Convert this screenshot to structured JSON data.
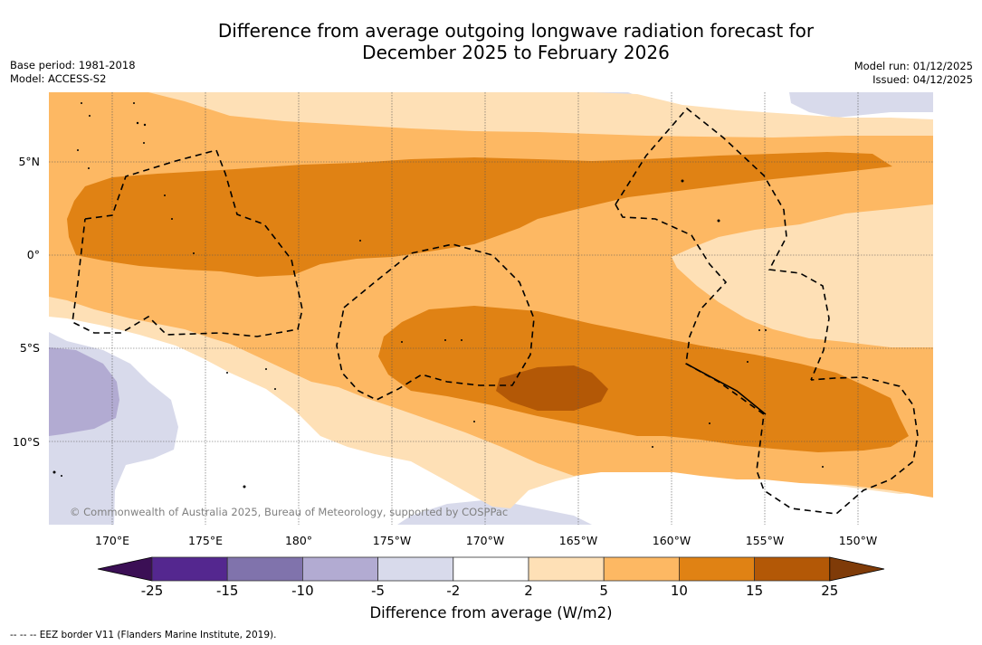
{
  "header": {
    "title_line1": "Difference from average outgoing longwave radiation forecast for",
    "title_line2": "December 2025 to February 2026",
    "base_period": "Base period: 1981-2018",
    "model": "Model: ACCESS-S2",
    "model_run": "Model run: 01/12/2025",
    "issued": "Issued: 04/12/2025"
  },
  "map": {
    "lat_labels": [
      "5°N",
      "0°",
      "5°S",
      "10°S"
    ],
    "lon_labels": [
      "170°E",
      "175°E",
      "180°",
      "175°W",
      "170°W",
      "165°W",
      "160°W",
      "155°W",
      "150°W"
    ],
    "extent": {
      "lon_min": 166.9,
      "lon_max": 212.3,
      "lat_min": -14.3,
      "lat_max": 8.9
    },
    "copyright": "© Commonwealth of Australia 2025, Bureau of Meteorology, supported by COSPPac",
    "overlay": "EEZ borders (dashed)"
  },
  "colorbar": {
    "label": "Difference from average (W/m2)",
    "ticks": [
      "-25",
      "-15",
      "-10",
      "-5",
      "-2",
      "2",
      "5",
      "10",
      "15",
      "25"
    ],
    "bins": [
      {
        "range": "< -25",
        "color": "#3b0f55"
      },
      {
        "range": "-25 to -15",
        "color": "#54278f"
      },
      {
        "range": "-15 to -10",
        "color": "#8073ac"
      },
      {
        "range": "-10 to -5",
        "color": "#b2abd2"
      },
      {
        "range": "-5 to -2",
        "color": "#d8daeb"
      },
      {
        "range": "-2 to 2",
        "color": "#ffffff"
      },
      {
        "range": "2 to 5",
        "color": "#fee0b6"
      },
      {
        "range": "5 to 10",
        "color": "#fdb863"
      },
      {
        "range": "10 to 15",
        "color": "#e08214"
      },
      {
        "range": "15 to 25",
        "color": "#b35806"
      },
      {
        "range": "> 25",
        "color": "#7f3b08"
      }
    ]
  },
  "footer": {
    "legend_note": "--  --  -- EEZ border V11 (Flanders Marine Institute, 2019)."
  }
}
